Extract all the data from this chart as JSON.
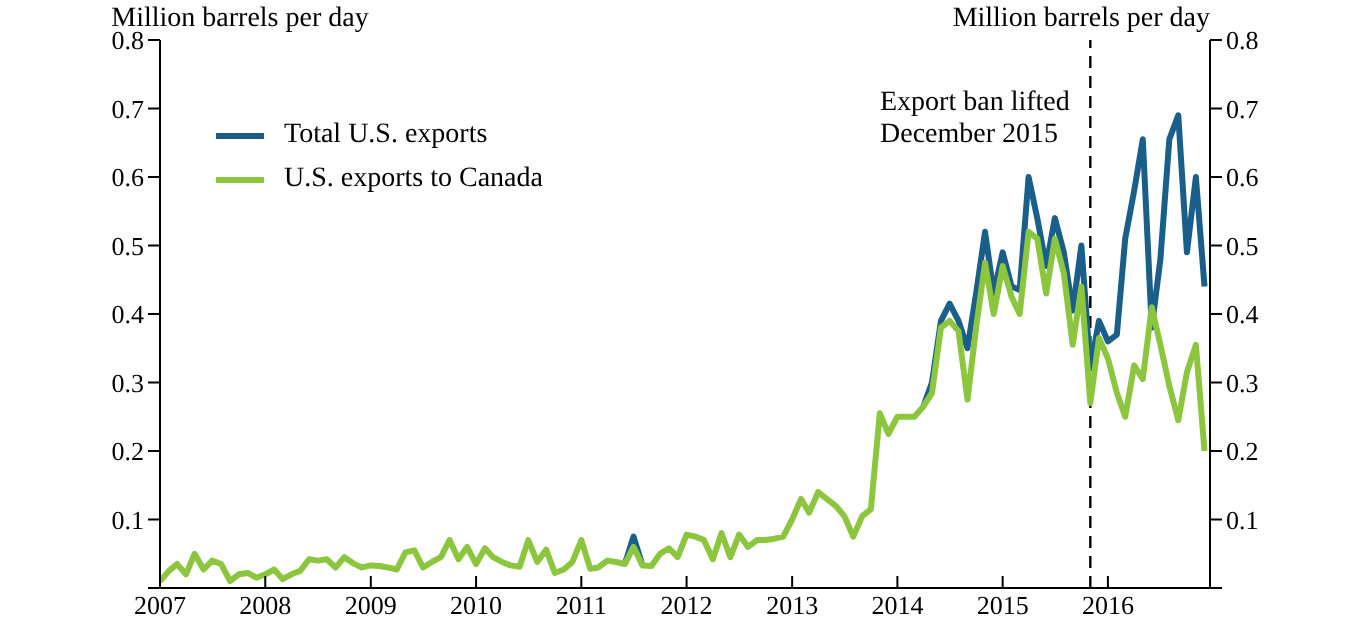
{
  "chart_data": {
    "type": "line",
    "ylabel": "Million barrels per day",
    "y2label": "Million barrels per day",
    "x": [
      "2007-01",
      "2007-02",
      "2007-03",
      "2007-04",
      "2007-05",
      "2007-06",
      "2007-07",
      "2007-08",
      "2007-09",
      "2007-10",
      "2007-11",
      "2007-12",
      "2008-01",
      "2008-02",
      "2008-03",
      "2008-04",
      "2008-05",
      "2008-06",
      "2008-07",
      "2008-08",
      "2008-09",
      "2008-10",
      "2008-11",
      "2008-12",
      "2009-01",
      "2009-02",
      "2009-03",
      "2009-04",
      "2009-05",
      "2009-06",
      "2009-07",
      "2009-08",
      "2009-09",
      "2009-10",
      "2009-11",
      "2009-12",
      "2010-01",
      "2010-02",
      "2010-03",
      "2010-04",
      "2010-05",
      "2010-06",
      "2010-07",
      "2010-08",
      "2010-09",
      "2010-10",
      "2010-11",
      "2010-12",
      "2011-01",
      "2011-02",
      "2011-03",
      "2011-04",
      "2011-05",
      "2011-06",
      "2011-07",
      "2011-08",
      "2011-09",
      "2011-10",
      "2011-11",
      "2011-12",
      "2012-01",
      "2012-02",
      "2012-03",
      "2012-04",
      "2012-05",
      "2012-06",
      "2012-07",
      "2012-08",
      "2012-09",
      "2012-10",
      "2012-11",
      "2012-12",
      "2013-01",
      "2013-02",
      "2013-03",
      "2013-04",
      "2013-05",
      "2013-06",
      "2013-07",
      "2013-08",
      "2013-09",
      "2013-10",
      "2013-11",
      "2013-12",
      "2014-01",
      "2014-02",
      "2014-03",
      "2014-04",
      "2014-05",
      "2014-06",
      "2014-07",
      "2014-08",
      "2014-09",
      "2014-10",
      "2014-11",
      "2014-12",
      "2015-01",
      "2015-02",
      "2015-03",
      "2015-04",
      "2015-05",
      "2015-06",
      "2015-07",
      "2015-08",
      "2015-09",
      "2015-10",
      "2015-11",
      "2015-12",
      "2016-01",
      "2016-02",
      "2016-03",
      "2016-04",
      "2016-05",
      "2016-06",
      "2016-07",
      "2016-08",
      "2016-09",
      "2016-10",
      "2016-11",
      "2016-12"
    ],
    "series": [
      {
        "name": "Total U.S. exports",
        "color": "#1a5f8a",
        "values": [
          null,
          null,
          null,
          null,
          null,
          null,
          null,
          null,
          null,
          null,
          null,
          null,
          null,
          null,
          null,
          null,
          null,
          null,
          null,
          null,
          null,
          null,
          null,
          null,
          null,
          null,
          null,
          null,
          null,
          null,
          null,
          null,
          null,
          null,
          null,
          null,
          null,
          null,
          null,
          null,
          null,
          null,
          null,
          null,
          null,
          null,
          null,
          null,
          null,
          null,
          null,
          null,
          null,
          0.035,
          0.075,
          0.033,
          null,
          null,
          null,
          null,
          null,
          null,
          null,
          null,
          null,
          null,
          null,
          null,
          null,
          null,
          null,
          null,
          null,
          null,
          null,
          null,
          null,
          null,
          null,
          null,
          null,
          null,
          null,
          null,
          null,
          null,
          null,
          0.265,
          0.3,
          0.39,
          0.415,
          0.39,
          0.35,
          0.43,
          0.52,
          0.43,
          0.49,
          0.44,
          0.435,
          0.6,
          0.54,
          0.47,
          0.54,
          0.49,
          0.405,
          0.5,
          0.32,
          0.39,
          0.36,
          0.37,
          0.51,
          0.58,
          0.655,
          0.38,
          0.48,
          0.655,
          0.69,
          0.49,
          0.6,
          0.44
        ]
      },
      {
        "name": "U.S. exports to Canada",
        "color": "#8cc63f",
        "values": [
          0.01,
          0.025,
          0.035,
          0.02,
          0.05,
          0.027,
          0.04,
          0.035,
          0.01,
          0.02,
          0.022,
          0.015,
          0.02,
          0.027,
          0.013,
          0.02,
          0.025,
          0.042,
          0.04,
          0.042,
          0.03,
          0.045,
          0.036,
          0.03,
          0.033,
          0.032,
          0.03,
          0.027,
          0.052,
          0.055,
          0.03,
          0.038,
          0.045,
          0.07,
          0.042,
          0.06,
          0.035,
          0.058,
          0.045,
          0.038,
          0.033,
          0.031,
          0.07,
          0.038,
          0.056,
          0.022,
          0.027,
          0.038,
          0.07,
          0.028,
          0.03,
          0.04,
          0.038,
          0.035,
          0.06,
          0.033,
          0.032,
          0.05,
          0.058,
          0.045,
          0.078,
          0.075,
          0.07,
          0.042,
          0.08,
          0.045,
          0.078,
          0.06,
          0.07,
          0.07,
          0.072,
          0.075,
          0.1,
          0.13,
          0.11,
          0.14,
          0.13,
          0.12,
          0.105,
          0.075,
          0.105,
          0.115,
          0.255,
          0.225,
          0.25,
          0.25,
          0.25,
          0.265,
          0.285,
          0.38,
          0.39,
          0.375,
          0.275,
          0.38,
          0.475,
          0.4,
          0.47,
          0.425,
          0.4,
          0.52,
          0.51,
          0.43,
          0.51,
          0.46,
          0.355,
          0.44,
          0.27,
          0.365,
          0.335,
          0.285,
          0.25,
          0.325,
          0.305,
          0.41,
          0.355,
          0.295,
          0.245,
          0.315,
          0.355,
          0.2
        ]
      }
    ],
    "xlim": [
      "2007-01",
      "2016-12-20"
    ],
    "xticks": [
      "2007",
      "2008",
      "2009",
      "2010",
      "2011",
      "2012",
      "2013",
      "2014",
      "2015",
      "2016"
    ],
    "ylim": [
      0,
      0.8
    ],
    "yticks": [
      {
        "value": 0,
        "label": null
      },
      0.1,
      0.2,
      0.3,
      0.4,
      0.5,
      0.6,
      0.7,
      0.8
    ],
    "y2lim": [
      0,
      0.8
    ],
    "y2ticks": [
      {
        "value": 0,
        "label": null
      },
      0.1,
      0.2,
      0.3,
      0.4,
      0.5,
      0.6,
      0.7,
      0.8
    ],
    "ref_lines": [
      {
        "axis": "x",
        "value": "2015-11",
        "line_style": "dashed",
        "color": "#000000"
      }
    ],
    "annotations": [
      "Export ban lifted December 2015"
    ],
    "legend": "top left",
    "marker": "none",
    "line_style": "solid"
  }
}
